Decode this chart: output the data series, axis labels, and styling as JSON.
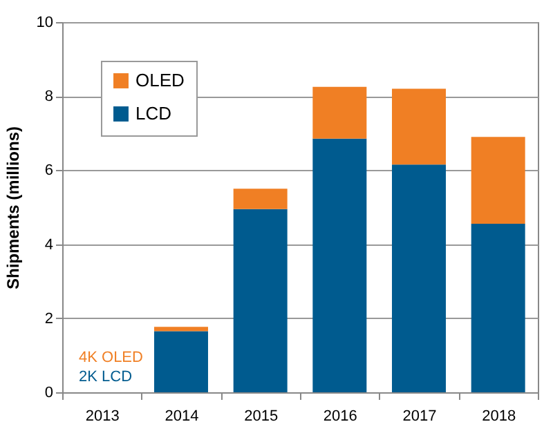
{
  "chart_data": {
    "type": "bar",
    "stacked": true,
    "ylabel": "Shipments (millions)",
    "categories": [
      "2013",
      "2014",
      "2015",
      "2016",
      "2017",
      "2018"
    ],
    "series": [
      {
        "name": "LCD",
        "color": "#005b8f",
        "values": [
          0,
          1.65,
          4.95,
          6.85,
          6.15,
          4.55
        ]
      },
      {
        "name": "OLED",
        "color": "#f07f24",
        "values": [
          0,
          0.12,
          0.55,
          1.4,
          2.05,
          2.35
        ]
      }
    ],
    "ylim": [
      0,
      10
    ],
    "yticks": [
      0,
      2,
      4,
      6,
      8,
      10
    ],
    "grid": "y",
    "legend": "top left",
    "annotations": [
      "4K OLED",
      "2K LCD"
    ]
  }
}
